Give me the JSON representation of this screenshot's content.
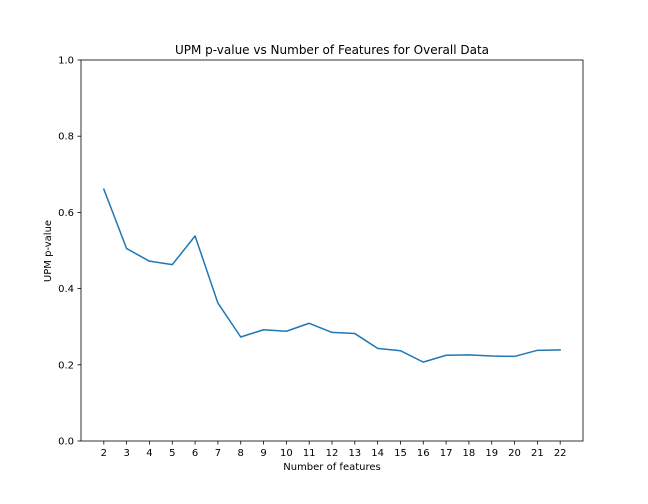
{
  "chart_data": {
    "type": "line",
    "title": "UPM p-value vs Number of Features for Overall Data",
    "xlabel": "Number of features",
    "ylabel": "UPM p-value",
    "x": [
      2,
      3,
      4,
      5,
      6,
      7,
      8,
      9,
      10,
      11,
      12,
      13,
      14,
      15,
      16,
      17,
      18,
      19,
      20,
      21,
      22
    ],
    "series": [
      {
        "values": [
          0.661,
          0.505,
          0.472,
          0.463,
          0.538,
          0.362,
          0.273,
          0.292,
          0.288,
          0.309,
          0.285,
          0.282,
          0.243,
          0.237,
          0.207,
          0.225,
          0.226,
          0.223,
          0.222,
          0.238,
          0.239
        ],
        "color": "#1f77b4"
      }
    ],
    "x_ticks": [
      "2",
      "3",
      "4",
      "5",
      "6",
      "7",
      "8",
      "9",
      "10",
      "11",
      "12",
      "13",
      "14",
      "15",
      "16",
      "17",
      "18",
      "19",
      "20",
      "21",
      "22"
    ],
    "y_ticks": [
      "0.0",
      "0.2",
      "0.4",
      "0.6",
      "0.8",
      "1.0"
    ],
    "xlim": [
      1,
      23
    ],
    "ylim": [
      0,
      1
    ],
    "grid": false,
    "legend": "none"
  }
}
